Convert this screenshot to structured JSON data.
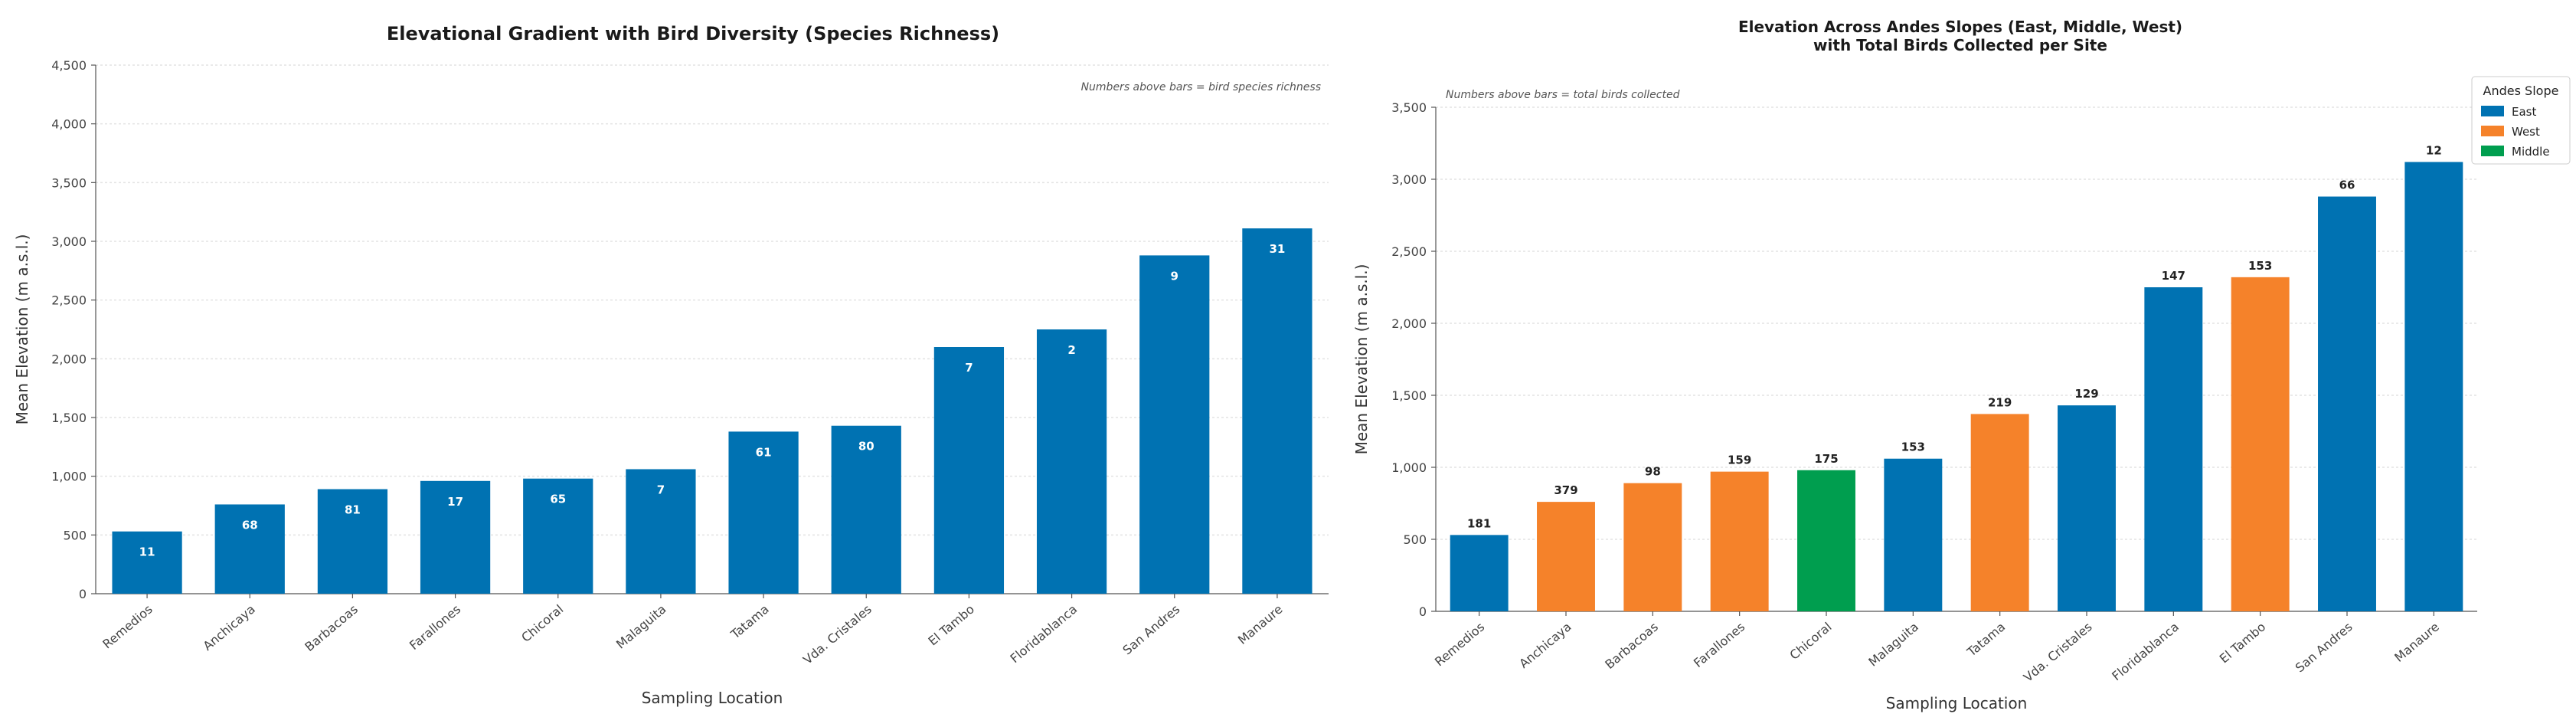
{
  "chart_data": [
    {
      "type": "bar",
      "title": "Elevational Gradient with Bird Diversity (Species Richness)",
      "xlabel": "Sampling Location",
      "ylabel": "Mean Elevation (m a.s.l.)",
      "note": "Numbers above bars = bird species richness",
      "ylim": [
        0,
        4500
      ],
      "yticks": [
        0,
        500,
        1000,
        1500,
        2000,
        2500,
        3000,
        3500,
        4000,
        4500
      ],
      "ytick_labels": [
        "0",
        "500",
        "1,000",
        "1,500",
        "2,000",
        "2,500",
        "3,000",
        "3,500",
        "4,000",
        "4,500"
      ],
      "grid": "horizontal",
      "bar_color": "#0072b2",
      "categories": [
        "Remedios",
        "Anchicaya",
        "Barbacoas",
        "Farallones",
        "Chicoral",
        "Malaguita",
        "Tatama",
        "Vda. Cristales",
        "El Tambo",
        "Floridablanca",
        "San Andres",
        "Manaure"
      ],
      "values": [
        530,
        760,
        890,
        960,
        980,
        1060,
        1380,
        1430,
        2100,
        2250,
        2880,
        3110
      ],
      "bar_labels": [
        "11",
        "68",
        "81",
        "17",
        "65",
        "7",
        "61",
        "80",
        "7",
        "2",
        "9",
        "31"
      ]
    },
    {
      "type": "bar",
      "title": "Elevation Across Andes Slopes (East, Middle, West)",
      "subtitle": "with Total Birds Collected per Site",
      "xlabel": "Sampling Location",
      "ylabel": "Mean Elevation (m a.s.l.)",
      "note": "Numbers above bars = total birds collected",
      "ylim": [
        0,
        3500
      ],
      "yticks": [
        0,
        500,
        1000,
        1500,
        2000,
        2500,
        3000,
        3500
      ],
      "ytick_labels": [
        "0",
        "500",
        "1,000",
        "1,500",
        "2,000",
        "2,500",
        "3,000",
        "3,500"
      ],
      "grid": "horizontal",
      "legend": {
        "title": "Andes Slope",
        "placement": "top-right",
        "entries": [
          {
            "name": "East",
            "color": "#0072b2"
          },
          {
            "name": "West",
            "color": "#f5822a"
          },
          {
            "name": "Middle",
            "color": "#009e4f"
          }
        ]
      },
      "categories": [
        "Remedios",
        "Anchicaya",
        "Barbacoas",
        "Farallones",
        "Chicoral",
        "Malaguita",
        "Tatama",
        "Vda. Cristales",
        "Floridablanca",
        "El Tambo",
        "San Andres",
        "Manaure"
      ],
      "values": [
        530,
        760,
        890,
        970,
        980,
        1060,
        1370,
        1430,
        2250,
        2320,
        2880,
        3120
      ],
      "slopes": [
        "East",
        "West",
        "West",
        "West",
        "Middle",
        "East",
        "West",
        "East",
        "East",
        "West",
        "East",
        "East"
      ],
      "bar_labels": [
        "181",
        "379",
        "98",
        "159",
        "175",
        "153",
        "219",
        "129",
        "147",
        "153",
        "66",
        "12"
      ]
    }
  ]
}
